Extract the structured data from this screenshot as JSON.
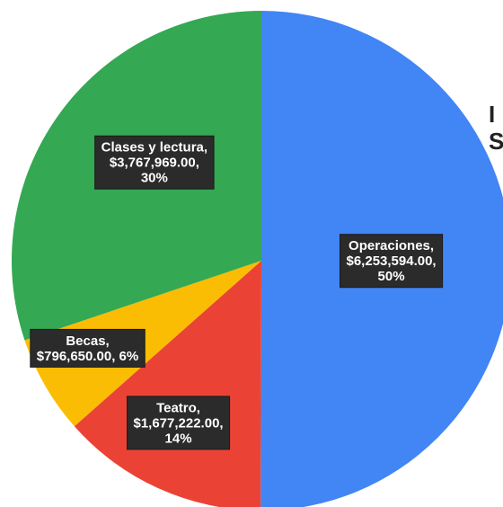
{
  "chart_data": {
    "type": "pie",
    "title": "",
    "categories": [
      "Operaciones",
      "Teatro",
      "Becas",
      "Clases y lectura"
    ],
    "values": [
      6253594.0,
      1677222.0,
      796650.0,
      3767969.0
    ],
    "percent": [
      50,
      14,
      6,
      30
    ],
    "labels": [
      [
        "Operaciones,",
        "$6,253,594.00,",
        "50%"
      ],
      [
        "Teatro,",
        "$1,677,222.00,",
        "14%"
      ],
      [
        "Becas,",
        "$796,650.00, 6%"
      ],
      [
        "Clases y lectura,",
        "$3,767,969.00,",
        "30%"
      ]
    ],
    "colors": [
      "#4285F4",
      "#EA4335",
      "#FBBC04",
      "#34A853"
    ],
    "start_angle": "12 o'clock",
    "direction": "clockwise",
    "legend": "none"
  },
  "edge_title": {
    "lines": [
      "I",
      "S"
    ]
  }
}
